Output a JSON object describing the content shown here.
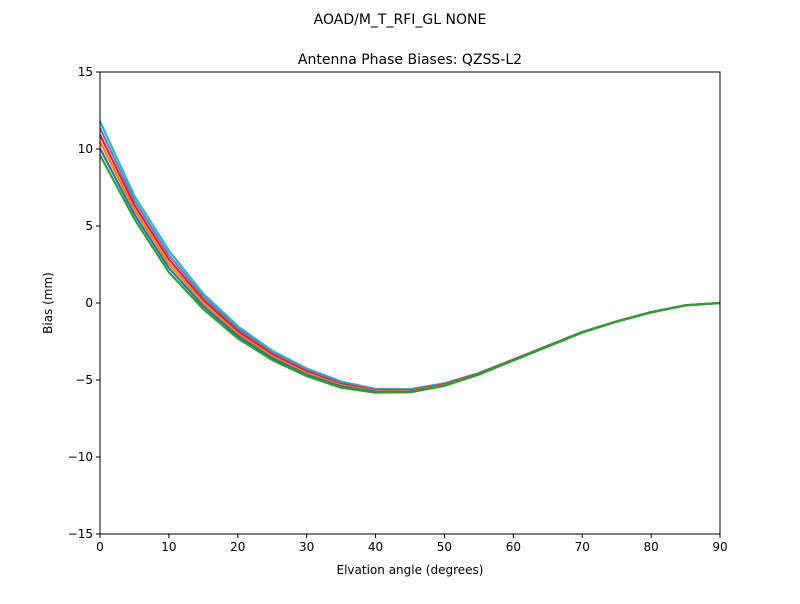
{
  "chart_data": {
    "type": "line",
    "suptitle": "AOAD/M_T_RFI_GL NONE",
    "title": "Antenna Phase Biases: QZSS-L2",
    "xlabel": "Elvation angle (degrees)",
    "ylabel": "Bias (mm)",
    "xlim": [
      0,
      90
    ],
    "ylim": [
      -15,
      15
    ],
    "xticks": [
      0,
      10,
      20,
      30,
      40,
      50,
      60,
      70,
      80,
      90
    ],
    "yticks": [
      -15,
      -10,
      -5,
      0,
      5,
      10,
      15
    ],
    "ytick_labels": [
      "−15",
      "−10",
      "−5",
      "0",
      "5",
      "10",
      "15"
    ],
    "grid": false,
    "x": [
      0,
      5,
      10,
      15,
      20,
      25,
      30,
      35,
      40,
      45,
      50,
      55,
      60,
      65,
      70,
      75,
      80,
      85,
      90
    ],
    "series": [
      {
        "color": "#17becf",
        "values": [
          11.8,
          6.95,
          3.4,
          0.6,
          -1.5,
          -3.1,
          -4.25,
          -5.1,
          -5.58,
          -5.6,
          -5.22,
          -4.55,
          -3.67,
          -2.77,
          -1.88,
          -1.19,
          -0.59,
          -0.15,
          0
        ]
      },
      {
        "color": "#9467bd",
        "values": [
          11.36,
          6.65,
          3.12,
          0.4,
          -1.66,
          -3.22,
          -4.35,
          -5.18,
          -5.63,
          -5.64,
          -5.25,
          -4.57,
          -3.68,
          -2.78,
          -1.89,
          -1.19,
          -0.6,
          -0.15,
          0
        ]
      },
      {
        "color": "#d62728",
        "values": [
          10.92,
          6.35,
          2.84,
          0.2,
          -1.82,
          -3.34,
          -4.45,
          -5.26,
          -5.68,
          -5.68,
          -5.28,
          -4.59,
          -3.69,
          -2.79,
          -1.9,
          -1.2,
          -0.6,
          -0.15,
          0
        ]
      },
      {
        "color": "#ff7f0e",
        "values": [
          10.48,
          6.05,
          2.56,
          0.0,
          -1.98,
          -3.46,
          -4.55,
          -5.34,
          -5.72,
          -5.72,
          -5.32,
          -4.61,
          -3.71,
          -2.81,
          -1.9,
          -1.2,
          -0.6,
          -0.15,
          0
        ]
      },
      {
        "color": "#1f77b4",
        "values": [
          10.04,
          5.75,
          2.28,
          -0.2,
          -2.14,
          -3.58,
          -4.65,
          -5.42,
          -5.77,
          -5.76,
          -5.35,
          -4.63,
          -3.72,
          -2.82,
          -1.91,
          -1.21,
          -0.6,
          -0.15,
          0
        ]
      },
      {
        "color": "#2ca02c",
        "values": [
          9.6,
          5.45,
          2.0,
          -0.4,
          -2.3,
          -3.7,
          -4.75,
          -5.5,
          -5.82,
          -5.8,
          -5.38,
          -4.65,
          -3.73,
          -2.83,
          -1.92,
          -1.21,
          -0.61,
          -0.15,
          0
        ]
      }
    ]
  }
}
